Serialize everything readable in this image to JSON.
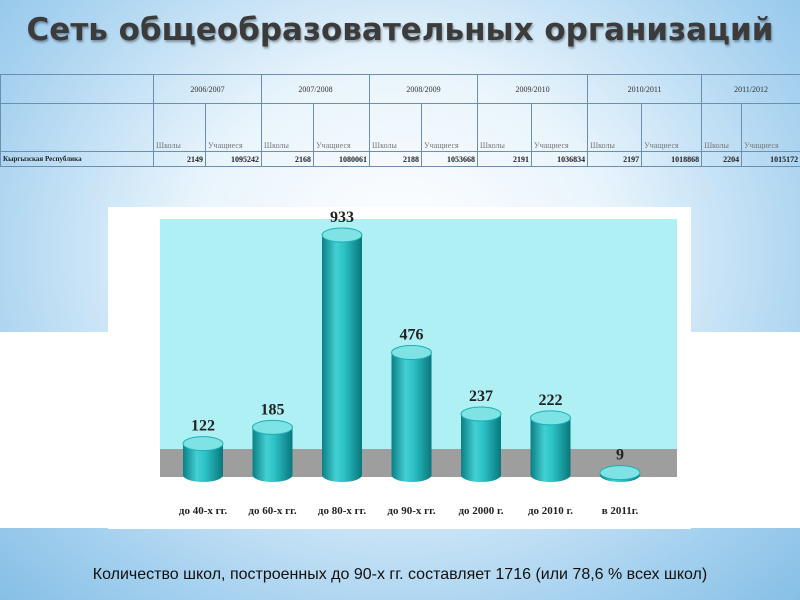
{
  "title": "Сеть общеобразовательных организаций",
  "table": {
    "years": [
      "2006/2007",
      "2007/2008",
      "2008/2009",
      "2009/2010",
      "2010/2011",
      "2011/2012"
    ],
    "sub_headers": [
      [
        "Школы",
        "Учащиеся"
      ],
      [
        "Школы",
        "Учащиеся"
      ],
      [
        "Школы",
        "Учащиеся"
      ],
      [
        "Школы",
        "Учащиеся"
      ],
      [
        "Школы",
        "Учащиеся"
      ],
      [
        "Школы",
        "Учащиеся"
      ]
    ],
    "region": "Кыргызская Республика",
    "values": [
      [
        2149,
        1095242
      ],
      [
        2168,
        1080061
      ],
      [
        2188,
        1053668
      ],
      [
        2191,
        1036834
      ],
      [
        2197,
        1018868
      ],
      [
        2204,
        1015172
      ]
    ]
  },
  "chart_data": {
    "type": "bar",
    "categories": [
      "до 40-х гг.",
      "до 60-х гг.",
      "до 80-х гг.",
      "до 90-х гг.",
      "до 2000 г.",
      "до 2010 г.",
      "в 2011г."
    ],
    "values": [
      122,
      185,
      933,
      476,
      237,
      222,
      9
    ],
    "title": "",
    "xlabel": "",
    "ylabel": "",
    "ylim": [
      0,
      1000
    ],
    "grid": false,
    "colors": {
      "bar": "#1ab0b4",
      "bar_dark": "#0a7f84",
      "bar_light": "#7fe3e5",
      "plot_bg": "#aef0f4",
      "floor": "#9e9e9e"
    }
  },
  "footer": "Количество школ, построенных до 90-х гг. составляет 1716 (или 78,6 % всех школ)"
}
